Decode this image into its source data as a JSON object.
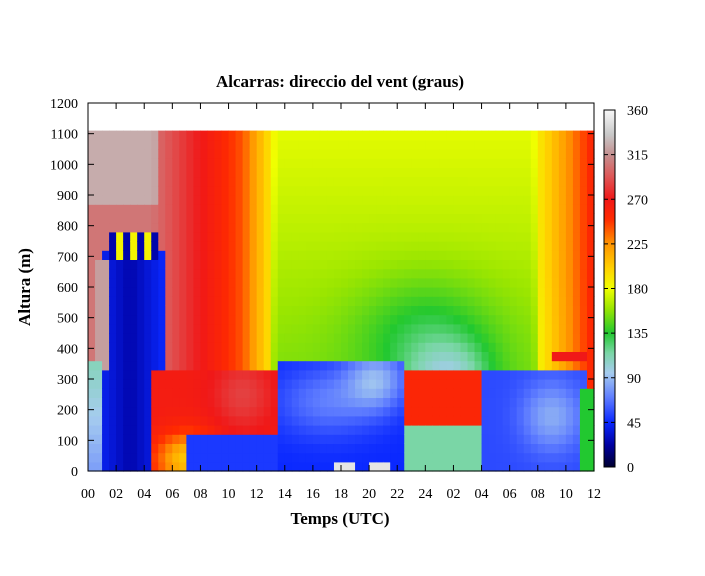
{
  "chart_data": {
    "type": "heatmap",
    "title": "Alcarras: direccio del vent (graus)",
    "xlabel": "Temps (UTC)",
    "ylabel": "Altura (m)",
    "x_tick_labels": [
      "00",
      "02",
      "04",
      "06",
      "08",
      "10",
      "12",
      "14",
      "16",
      "18",
      "20",
      "22",
      "24",
      "02",
      "04",
      "06",
      "08",
      "10",
      "12"
    ],
    "xlim_hours": [
      0,
      36
    ],
    "y_ticks": [
      0,
      100,
      200,
      300,
      400,
      500,
      600,
      700,
      800,
      900,
      1000,
      1100,
      1200
    ],
    "ylim": [
      0,
      1200
    ],
    "data_top_m": 1110,
    "colorbar": {
      "ticks": [
        0,
        45,
        90,
        135,
        180,
        225,
        270,
        315,
        360
      ],
      "range": [
        0,
        360
      ],
      "stops": [
        {
          "v": 0,
          "color": "#000030"
        },
        {
          "v": 22,
          "color": "#0000a0"
        },
        {
          "v": 45,
          "color": "#0a28ff"
        },
        {
          "v": 70,
          "color": "#5f7dff"
        },
        {
          "v": 95,
          "color": "#a6ccee"
        },
        {
          "v": 115,
          "color": "#7ad6a6"
        },
        {
          "v": 135,
          "color": "#22c830"
        },
        {
          "v": 160,
          "color": "#9be600"
        },
        {
          "v": 180,
          "color": "#f0ff00"
        },
        {
          "v": 200,
          "color": "#ffd200"
        },
        {
          "v": 225,
          "color": "#ff9400"
        },
        {
          "v": 250,
          "color": "#ff2a00"
        },
        {
          "v": 270,
          "color": "#f01818"
        },
        {
          "v": 295,
          "color": "#dc5c5c"
        },
        {
          "v": 315,
          "color": "#c49090"
        },
        {
          "v": 335,
          "color": "#c8c8c8"
        },
        {
          "v": 360,
          "color": "#f8f8f8"
        }
      ]
    },
    "cells_dt_hours": 0.5,
    "cells_dz_m": 30
  }
}
